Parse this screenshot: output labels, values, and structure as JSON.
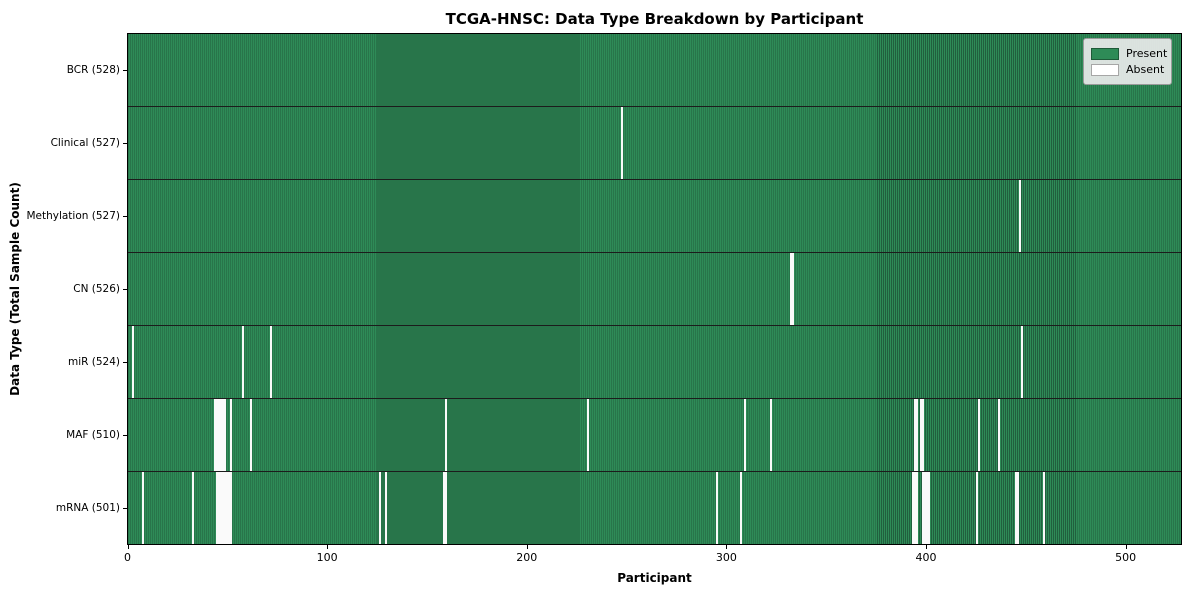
{
  "title": "TCGA-HNSC: Data Type Breakdown by Participant",
  "legend": {
    "present_label": "Present",
    "absent_label": "Absent"
  },
  "colors": {
    "present": "#2e8b57",
    "absent": "#fafafa",
    "cell_edge": "#215f3e"
  },
  "chart_data": {
    "type": "heatmap",
    "title": "TCGA-HNSC: Data Type Breakdown by Participant",
    "xlabel": "Participant",
    "ylabel": "Data Type (Total Sample Count)",
    "x_ticks": [
      0,
      100,
      200,
      300,
      400,
      500
    ],
    "x_range": [
      0,
      528
    ],
    "n_participants": 528,
    "grid": false,
    "legend_position": "upper right",
    "legend_entries": [
      {
        "label": "Present",
        "color": "#2e8b57"
      },
      {
        "label": "Absent",
        "color": "#ffffff"
      }
    ],
    "rows": [
      {
        "name": "bcr",
        "label": "BCR (528)",
        "total": 528,
        "absent": []
      },
      {
        "name": "clinical",
        "label": "Clinical (527)",
        "total": 527,
        "absent": [
          247
        ]
      },
      {
        "name": "methylation",
        "label": "Methylation (527)",
        "total": 527,
        "absent": [
          447
        ]
      },
      {
        "name": "cn",
        "label": "CN (526)",
        "total": 526,
        "absent": [
          332,
          333
        ]
      },
      {
        "name": "mir",
        "label": "miR (524)",
        "total": 524,
        "absent": [
          2,
          57,
          71,
          448
        ]
      },
      {
        "name": "maf",
        "label": "MAF (510)",
        "total": 510,
        "absent": [
          43,
          44,
          45,
          46,
          47,
          48,
          51,
          61,
          159,
          230,
          309,
          322,
          394,
          395,
          397,
          398,
          426,
          436
        ]
      },
      {
        "name": "mrna",
        "label": "mRNA (501)",
        "total": 501,
        "absent": [
          7,
          32,
          44,
          45,
          46,
          47,
          48,
          49,
          50,
          51,
          126,
          129,
          158,
          159,
          295,
          307,
          393,
          394,
          395,
          398,
          399,
          400,
          401,
          425,
          445,
          446,
          459
        ]
      }
    ]
  }
}
